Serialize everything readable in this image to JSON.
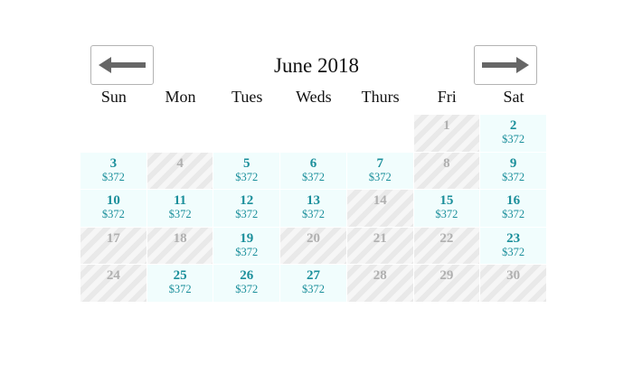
{
  "calendar": {
    "title": "June 2018",
    "nav": {
      "prev_icon": "arrow-left-icon",
      "next_icon": "arrow-right-icon"
    },
    "weekdays": [
      "Sun",
      "Mon",
      "Tues",
      "Weds",
      "Thurs",
      "Fri",
      "Sat"
    ],
    "leading_blanks": 5,
    "days": [
      {
        "day": "1",
        "available": false,
        "price": ""
      },
      {
        "day": "2",
        "available": true,
        "price": "$372"
      },
      {
        "day": "3",
        "available": true,
        "price": "$372"
      },
      {
        "day": "4",
        "available": false,
        "price": ""
      },
      {
        "day": "5",
        "available": true,
        "price": "$372"
      },
      {
        "day": "6",
        "available": true,
        "price": "$372"
      },
      {
        "day": "7",
        "available": true,
        "price": "$372"
      },
      {
        "day": "8",
        "available": false,
        "price": ""
      },
      {
        "day": "9",
        "available": true,
        "price": "$372"
      },
      {
        "day": "10",
        "available": true,
        "price": "$372"
      },
      {
        "day": "11",
        "available": true,
        "price": "$372"
      },
      {
        "day": "12",
        "available": true,
        "price": "$372"
      },
      {
        "day": "13",
        "available": true,
        "price": "$372"
      },
      {
        "day": "14",
        "available": false,
        "price": ""
      },
      {
        "day": "15",
        "available": true,
        "price": "$372"
      },
      {
        "day": "16",
        "available": true,
        "price": "$372"
      },
      {
        "day": "17",
        "available": false,
        "price": ""
      },
      {
        "day": "18",
        "available": false,
        "price": ""
      },
      {
        "day": "19",
        "available": true,
        "price": "$372"
      },
      {
        "day": "20",
        "available": false,
        "price": ""
      },
      {
        "day": "21",
        "available": false,
        "price": ""
      },
      {
        "day": "22",
        "available": false,
        "price": ""
      },
      {
        "day": "23",
        "available": true,
        "price": "$372"
      },
      {
        "day": "24",
        "available": false,
        "price": ""
      },
      {
        "day": "25",
        "available": true,
        "price": "$372"
      },
      {
        "day": "26",
        "available": true,
        "price": "$372"
      },
      {
        "day": "27",
        "available": true,
        "price": "$372"
      },
      {
        "day": "28",
        "available": false,
        "price": ""
      },
      {
        "day": "29",
        "available": false,
        "price": ""
      },
      {
        "day": "30",
        "available": false,
        "price": ""
      }
    ]
  },
  "colors": {
    "accent": "#1b8f9b",
    "available_bg": "#f1fdfd",
    "unavailable_text": "#b0b0b0"
  }
}
